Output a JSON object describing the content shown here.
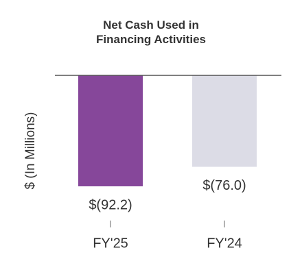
{
  "chart_data": {
    "type": "bar",
    "title": "Net Cash Used in Financing Activities",
    "y_label": "$ (In Millions)",
    "categories": [
      "FY'25",
      "FY'24"
    ],
    "values": [
      -92.2,
      -76.0
    ],
    "value_labels": [
      "$(92.2)",
      "$(76.0)"
    ],
    "colors": [
      "#86479a",
      "#dcdce6"
    ],
    "ylim": [
      -100,
      0
    ]
  }
}
